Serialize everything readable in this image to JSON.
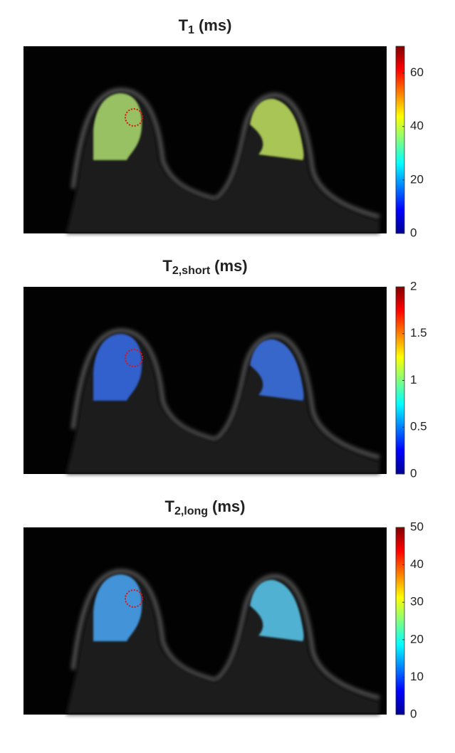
{
  "chart_data": [
    {
      "type": "image",
      "title": "T",
      "title_subscript": "1",
      "title_unit": "(ms)",
      "colormap": "jet",
      "ylim": [
        0,
        70
      ],
      "yticks": [
        0,
        20,
        40,
        60
      ]
    },
    {
      "type": "image",
      "title": "T",
      "title_subscript": "2,short",
      "title_unit": "(ms)",
      "colormap": "jet",
      "ylim": [
        0,
        2
      ],
      "yticks": [
        0,
        0.5,
        1,
        1.5,
        2
      ]
    },
    {
      "type": "image",
      "title": "T",
      "title_subscript": "2,long",
      "title_unit": "(ms)",
      "colormap": "jet",
      "ylim": [
        0,
        50
      ],
      "yticks": [
        0,
        10,
        20,
        30,
        40,
        50
      ]
    }
  ]
}
